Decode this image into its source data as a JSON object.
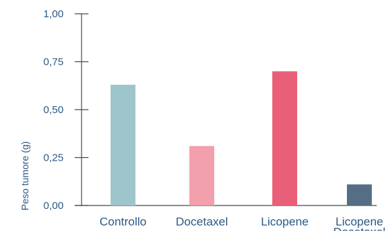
{
  "chart_data": {
    "type": "bar",
    "title": "",
    "xlabel": "",
    "ylabel": "Peso tumore (g)",
    "ylim": [
      0,
      1
    ],
    "yticks": [
      0,
      0.25,
      0.5,
      0.75,
      1.0
    ],
    "ytick_labels": [
      "0,00",
      "0,25",
      "0,50",
      "0,75",
      "1,00"
    ],
    "categories": [
      "Controllo",
      "Docetaxel",
      "Licopene",
      "Licopene Docetaxel"
    ],
    "category_lines": [
      [
        "Controllo"
      ],
      [
        "Docetaxel"
      ],
      [
        "Licopene"
      ],
      [
        "Licopene",
        "Docetaxel"
      ]
    ],
    "values": [
      0.63,
      0.31,
      0.7,
      0.11
    ],
    "colors": [
      "#9ec5cb",
      "#f2a0ac",
      "#ea5f78",
      "#556e86"
    ],
    "grid": false
  },
  "colors": {
    "axis": "#4a4a4a",
    "text": "#2a5a86"
  }
}
